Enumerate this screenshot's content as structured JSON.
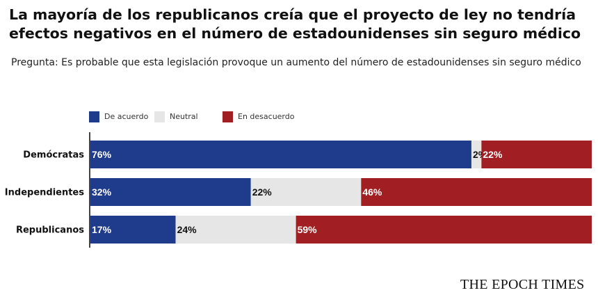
{
  "title": "La mayoría de los republicanos creía que el proyecto de ley no tendría efectos negativos en el número de estadounidenses sin seguro médico",
  "subtitle": "Pregunta: Es probable que esta legislación provoque un aumento del número de estadounidenses sin seguro médico",
  "brand": "THE EPOCH TIMES",
  "colors": {
    "agree": "#1f3b8c",
    "neutral": "#e6e6e6",
    "disagree": "#a11f22",
    "axis": "#444444"
  },
  "chart_data": {
    "type": "bar",
    "orientation": "horizontal",
    "stacked": true,
    "categories": [
      "Demócratas",
      "Independientes",
      "Republicanos"
    ],
    "series": [
      {
        "name": "De acuerdo",
        "values": [
          76,
          32,
          17
        ],
        "labels": [
          "76%",
          "32%",
          "17%"
        ]
      },
      {
        "name": "Neutral",
        "values": [
          2,
          22,
          24
        ],
        "labels": [
          "2%",
          "22%",
          "24%"
        ]
      },
      {
        "name": "En desacuerdo",
        "values": [
          22,
          46,
          59
        ],
        "labels": [
          "22%",
          "46%",
          "59%"
        ]
      }
    ],
    "xlim": [
      0,
      100
    ],
    "legend": "top-left",
    "grid": false
  }
}
